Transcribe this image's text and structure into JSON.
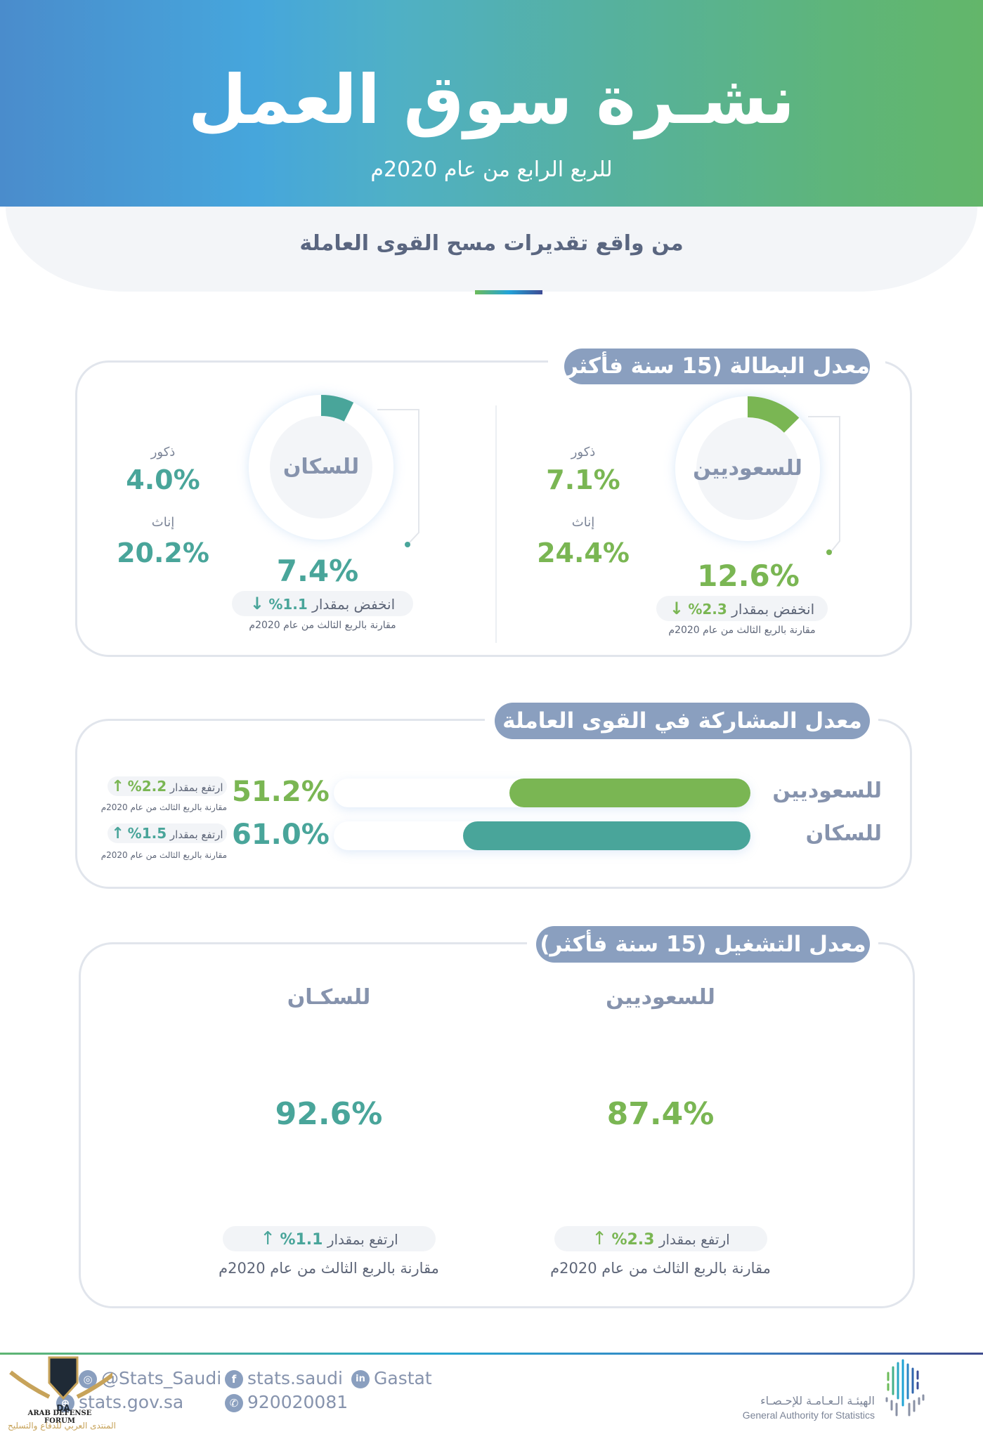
{
  "header": {
    "title": "نشـرة سوق العمل",
    "subtitle": "للربع الرابع من عام 2020م",
    "source_note": "من واقع تقديرات مسح القوى العاملة"
  },
  "colors": {
    "green": "#7ab653",
    "teal": "#49a59a",
    "slate": "#8a9fbf",
    "panel": "#f3f5f8"
  },
  "unemployment": {
    "title": "معدل البطالة (15 سنة فأكثر)",
    "saudi": {
      "label": "للسعوديين",
      "value": "12.6%",
      "value_num": 12.6,
      "males_label": "ذكور",
      "males_value": "7.1%",
      "females_label": "إناث",
      "females_value": "24.4%",
      "change_text": "انخفض بمقدار",
      "change_value": "2.3%",
      "change_direction": "down",
      "comparison": "مقارنة بالربع الثالث من عام 2020م"
    },
    "population": {
      "label": "للسكان",
      "value": "7.4%",
      "value_num": 7.4,
      "males_label": "ذكور",
      "males_value": "4.0%",
      "females_label": "إناث",
      "females_value": "20.2%",
      "change_text": "انخفض بمقدار",
      "change_value": "1.1%",
      "change_direction": "down",
      "comparison": "مقارنة بالربع الثالث من عام 2020م"
    }
  },
  "participation": {
    "title": "معدل المشاركة في القوى العاملة",
    "rows": [
      {
        "label": "للسعوديين",
        "value": "51.2%",
        "value_num": 51.2,
        "change_text": "ارتفع بمقدار",
        "change_value": "2.2%",
        "change_direction": "up",
        "comparison": "مقارنة بالربع الثالث من عام 2020م"
      },
      {
        "label": "للسكان",
        "value": "61.0%",
        "value_num": 61.0,
        "change_text": "ارتفع بمقدار",
        "change_value": "1.5%",
        "change_direction": "up",
        "comparison": "مقارنة بالربع الثالث من عام 2020م"
      }
    ]
  },
  "employment": {
    "title": "معدل التشغيل (15 سنة فأكثر)",
    "saudi": {
      "label": "للسعوديين",
      "value": "87.4%",
      "value_num": 87.4,
      "change_text": "ارتفع بمقدار",
      "change_value": "2.3%",
      "change_direction": "up",
      "comparison": "مقارنة بالربع الثالث من عام 2020م"
    },
    "population": {
      "label": "للسكـان",
      "value": "92.6%",
      "value_num": 92.6,
      "change_text": "ارتفع بمقدار",
      "change_value": "1.1%",
      "change_direction": "up",
      "comparison": "مقارنة بالربع الثالث من عام 2020م"
    }
  },
  "footer": {
    "instagram": "@Stats_Saudi",
    "facebook": "stats.saudi",
    "linkedin": "Gastat",
    "website": "stats.gov.sa",
    "phone": "920020081",
    "org_name_ar": "الهيئـة الـعـامـة للإحـصـاء",
    "org_name_en": "General Authority for Statistics",
    "watermark_en": "ARAB DEFENSE FORUM",
    "watermark_ar": "المنتدى العربي للدفاع والتسليح",
    "watermark_mark": "DA"
  }
}
